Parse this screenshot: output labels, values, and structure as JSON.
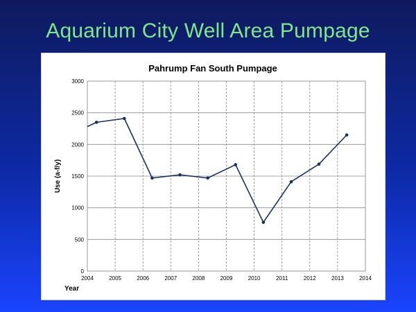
{
  "slide": {
    "title": "Aquarium City Well Area Pumpage"
  },
  "colors": {
    "line": "#17305e",
    "grid": "#8a8a8a",
    "title": "#7ee88a"
  },
  "chart_data": {
    "type": "line",
    "title": "Pahrump Fan South Pumpage",
    "xlabel": "Year",
    "ylabel": "Use (a-f/y)",
    "xlim": [
      2004,
      2014
    ],
    "ylim": [
      0,
      3000
    ],
    "x_ticks": [
      2004,
      2005,
      2006,
      2007,
      2008,
      2009,
      2010,
      2011,
      2012,
      2013,
      2014
    ],
    "y_ticks": [
      0,
      500,
      1000,
      1500,
      2000,
      2500,
      3000
    ],
    "grid": {
      "vertical": "dashed",
      "horizontal": "solid"
    },
    "legend": "none",
    "series": [
      {
        "x": [
          2003.6,
          2004.33,
          2005.33,
          2006.33,
          2007.33,
          2008.33,
          2009.33,
          2010.33,
          2011.33,
          2012.33,
          2013.33
        ],
        "y": [
          2200,
          2350,
          2410,
          1470,
          1520,
          1470,
          1680,
          770,
          1410,
          1690,
          2150
        ]
      }
    ]
  }
}
